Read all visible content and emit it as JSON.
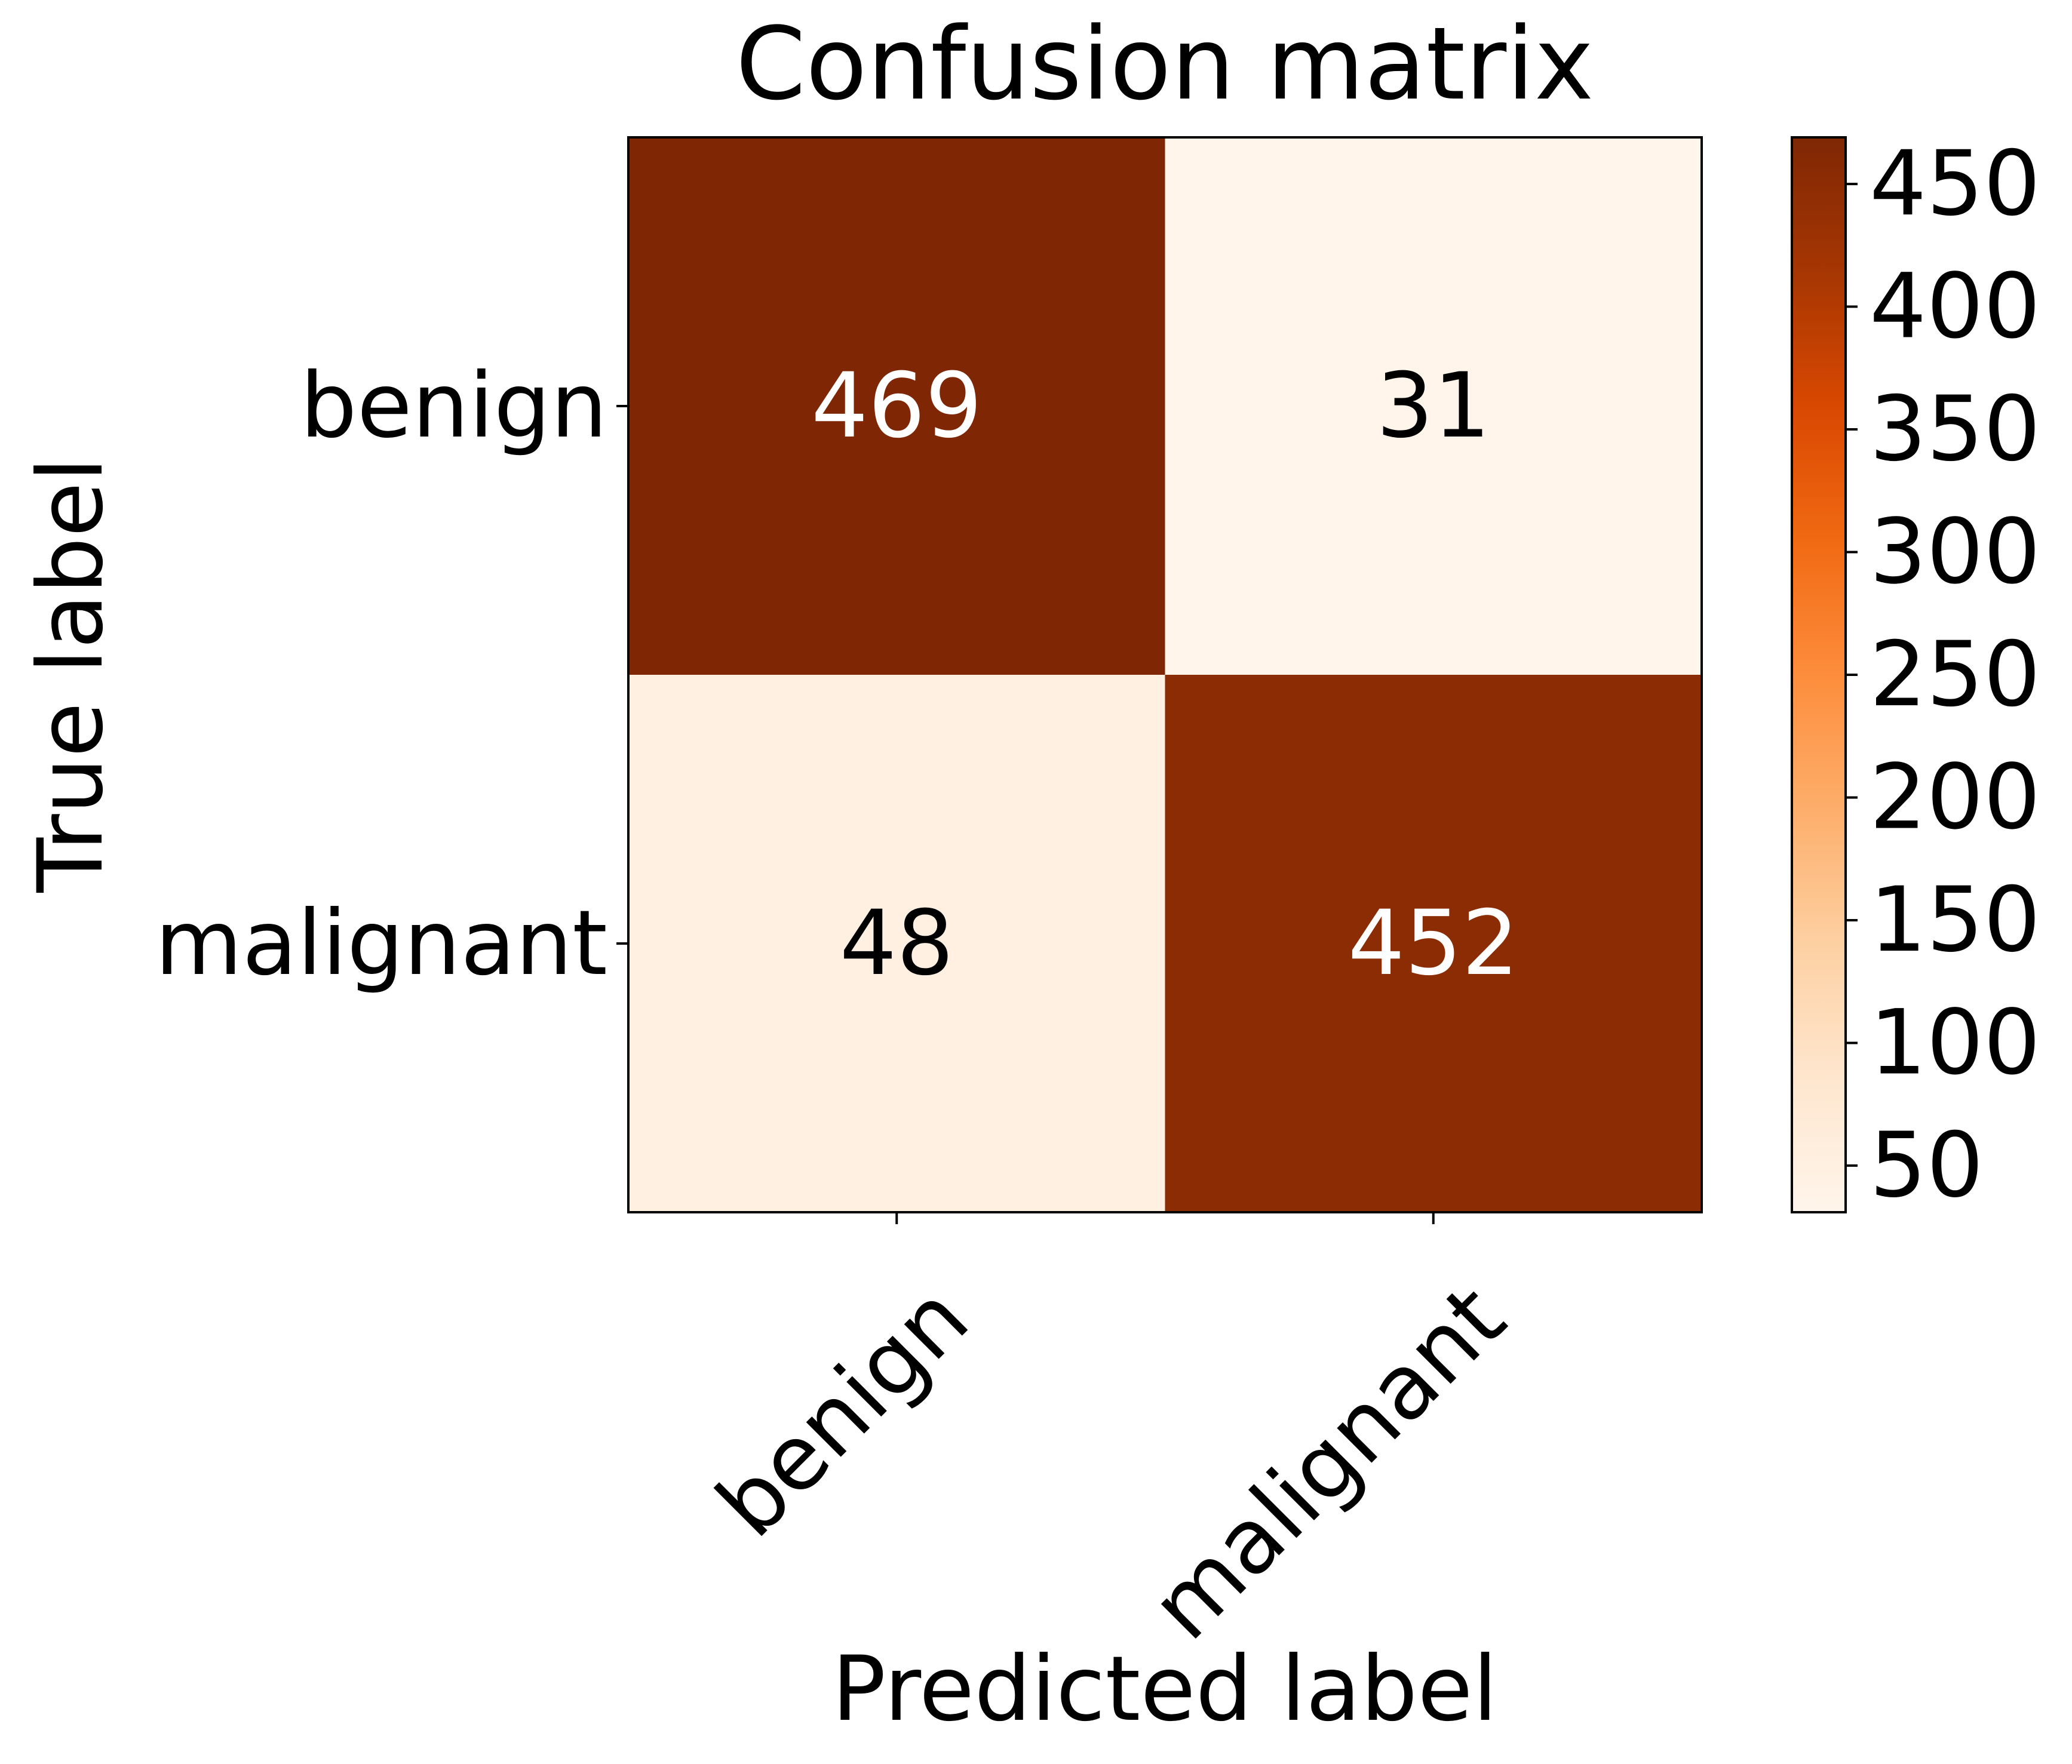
{
  "chart_data": {
    "type": "heatmap",
    "title": "Confusion matrix",
    "xlabel": "Predicted label",
    "ylabel": "True label",
    "x_categories": [
      "benign",
      "malignant"
    ],
    "y_categories": [
      "benign",
      "malignant"
    ],
    "values": [
      [
        469,
        31
      ],
      [
        48,
        452
      ]
    ],
    "colormap": "Oranges",
    "color_range": [
      31,
      469
    ],
    "colorbar_ticks": [
      50,
      100,
      150,
      200,
      250,
      300,
      350,
      400,
      450
    ],
    "text_color_dark": "#000000",
    "text_color_light": "#ffffff"
  }
}
